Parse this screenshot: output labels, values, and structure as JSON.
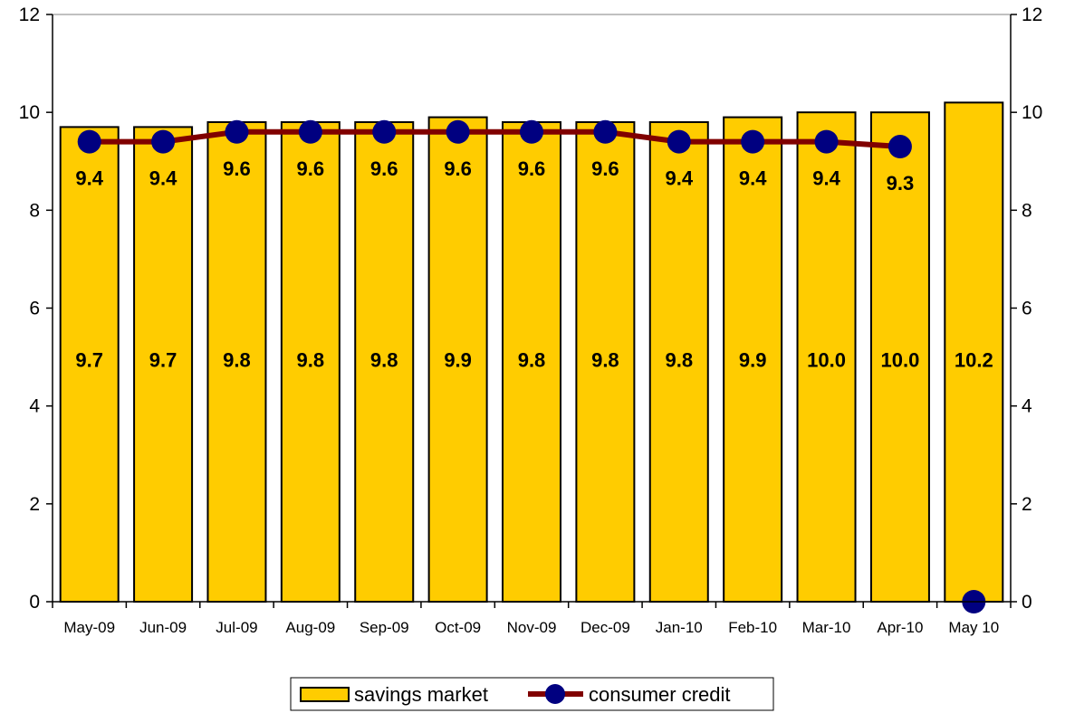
{
  "chart_data": {
    "type": "bar",
    "categories": [
      "May-09",
      "Jun-09",
      "Jul-09",
      "Aug-09",
      "Sep-09",
      "Oct-09",
      "Nov-09",
      "Dec-09",
      "Jan-10",
      "Feb-10",
      "Mar-10",
      "Apr-10",
      "May 10"
    ],
    "series": [
      {
        "name": "savings market",
        "type": "bar",
        "values": [
          9.7,
          9.7,
          9.8,
          9.8,
          9.8,
          9.9,
          9.8,
          9.8,
          9.8,
          9.9,
          10.0,
          10.0,
          10.2
        ],
        "labels": [
          "9.7",
          "9.7",
          "9.8",
          "9.8",
          "9.8",
          "9.9",
          "9.8",
          "9.8",
          "9.8",
          "9.9",
          "10.0",
          "10.0",
          "10.2"
        ],
        "color": "#FFCC00"
      },
      {
        "name": "consumer credit",
        "type": "line",
        "values": [
          9.4,
          9.4,
          9.6,
          9.6,
          9.6,
          9.6,
          9.6,
          9.6,
          9.4,
          9.4,
          9.4,
          9.3,
          0
        ],
        "labels": [
          "9.4",
          "9.4",
          "9.6",
          "9.6",
          "9.6",
          "9.6",
          "9.6",
          "9.6",
          "9.4",
          "9.4",
          "9.4",
          "9.3",
          ""
        ],
        "line_color": "#800000",
        "marker_color": "#000080"
      }
    ],
    "y_left": {
      "min": 0,
      "max": 12,
      "ticks": [
        "0",
        "2",
        "4",
        "6",
        "8",
        "10",
        "12"
      ]
    },
    "y_right": {
      "min": 0,
      "max": 12,
      "ticks": [
        "0",
        "2",
        "4",
        "6",
        "8",
        "10",
        "12"
      ]
    },
    "gridlines": false,
    "legend": {
      "position": "bottom",
      "entries": [
        "savings market",
        "consumer credit"
      ]
    }
  }
}
